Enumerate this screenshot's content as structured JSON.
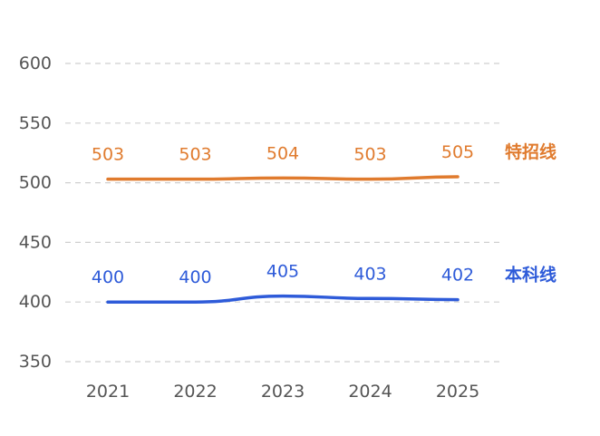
{
  "chart_data": {
    "type": "line",
    "x": [
      "2021",
      "2022",
      "2023",
      "2024",
      "2025"
    ],
    "series": [
      {
        "name": "特招线",
        "values": [
          503,
          503,
          504,
          503,
          505
        ],
        "color": "#E07B2E"
      },
      {
        "name": "本科线",
        "values": [
          400,
          400,
          405,
          403,
          402
        ],
        "color": "#2E5BD9"
      }
    ],
    "y_ticks": [
      350,
      400,
      450,
      500,
      550,
      600
    ],
    "ylim": [
      350,
      600
    ],
    "grid": true,
    "grid_style": "dashed",
    "legend_placement": "right, at series end",
    "title": "",
    "xlabel": "",
    "ylabel": ""
  }
}
